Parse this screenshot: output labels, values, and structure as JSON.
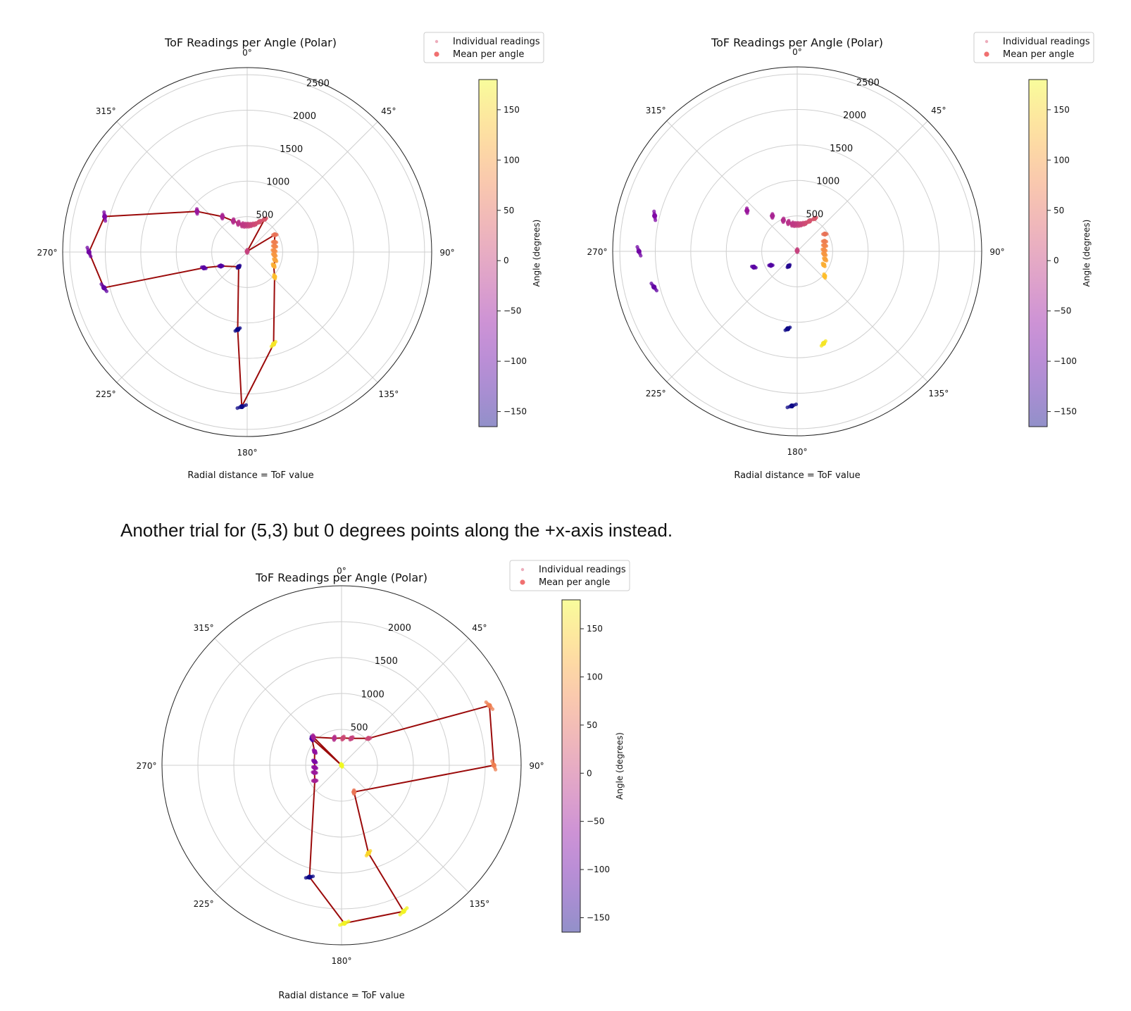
{
  "caption": "Another trial for (5,3) but 0 degrees points along the +x-axis instead.",
  "chart_data": [
    {
      "type": "scatter",
      "subtype": "polar",
      "title": "ToF Readings per Angle (Polar)",
      "xlabel": "Radial distance = ToF value",
      "zero_direction": "north",
      "direction": "clockwise",
      "rlim": [
        0,
        2600
      ],
      "r_ticks": [
        500,
        1000,
        1500,
        2000,
        2500
      ],
      "theta_ticks": [
        "0°",
        "45°",
        "90°",
        "135°",
        "180°",
        "225°",
        "270°",
        "315°"
      ],
      "grid": true,
      "legend": {
        "position": "top-right",
        "entries": [
          "Individual readings",
          "Mean per angle"
        ]
      },
      "colorbar": {
        "label": "Angle (degrees)",
        "range": [
          -165,
          180
        ],
        "ticks": [
          150,
          100,
          50,
          0,
          -50,
          -100,
          -150
        ]
      },
      "show_connecting_line": true,
      "series": [
        {
          "name": "Mean per angle",
          "points": [
            {
              "theta": 0,
              "r": 10
            },
            {
              "theta": 28,
              "r": 525
            },
            {
              "theta": 22,
              "r": 460
            },
            {
              "theta": 16,
              "r": 410
            },
            {
              "theta": 10,
              "r": 390
            },
            {
              "theta": 5,
              "r": 380
            },
            {
              "theta": 0,
              "r": 380
            },
            {
              "theta": -5,
              "r": 380
            },
            {
              "theta": -10,
              "r": 390
            },
            {
              "theta": -17,
              "r": 425
            },
            {
              "theta": -24,
              "r": 480
            },
            {
              "theta": -35,
              "r": 610
            },
            {
              "theta": -51,
              "r": 910
            },
            {
              "theta": -76,
              "r": 2070
            },
            {
              "theta": -90,
              "r": 2230
            },
            {
              "theta": -104,
              "r": 2080
            },
            {
              "theta": -110,
              "r": 650
            },
            {
              "theta": -118,
              "r": 420
            },
            {
              "theta": -150,
              "r": 240
            },
            {
              "theta": -173,
              "r": 1100
            },
            {
              "theta": -178,
              "r": 2180
            },
            {
              "theta": 164,
              "r": 1350
            },
            {
              "theta": 132,
              "r": 520
            },
            {
              "theta": 117,
              "r": 420
            },
            {
              "theta": 106,
              "r": 410
            },
            {
              "theta": 96,
              "r": 385
            },
            {
              "theta": 87,
              "r": 380
            },
            {
              "theta": 78,
              "r": 395
            },
            {
              "theta": 70,
              "r": 410
            },
            {
              "theta": 58,
              "r": 460
            }
          ]
        }
      ]
    },
    {
      "type": "scatter",
      "subtype": "polar",
      "title": "ToF Readings per Angle (Polar)",
      "xlabel": "Radial distance = ToF value",
      "zero_direction": "north",
      "direction": "clockwise",
      "rlim": [
        0,
        2600
      ],
      "r_ticks": [
        500,
        1000,
        1500,
        2000,
        2500
      ],
      "theta_ticks": [
        "0°",
        "45°",
        "90°",
        "135°",
        "180°",
        "225°",
        "270°",
        "315°"
      ],
      "grid": true,
      "legend": {
        "position": "top-right",
        "entries": [
          "Individual readings",
          "Mean per angle"
        ]
      },
      "colorbar": {
        "label": "Angle (degrees)",
        "range": [
          -165,
          180
        ],
        "ticks": [
          150,
          100,
          50,
          0,
          -50,
          -100,
          -150
        ]
      },
      "show_connecting_line": false,
      "series": [
        {
          "name": "Mean per angle",
          "points": [
            {
              "theta": 0,
              "r": 10
            },
            {
              "theta": 28,
              "r": 525
            },
            {
              "theta": 22,
              "r": 460
            },
            {
              "theta": 16,
              "r": 410
            },
            {
              "theta": 10,
              "r": 390
            },
            {
              "theta": 5,
              "r": 380
            },
            {
              "theta": 0,
              "r": 380
            },
            {
              "theta": -5,
              "r": 380
            },
            {
              "theta": -10,
              "r": 390
            },
            {
              "theta": -17,
              "r": 425
            },
            {
              "theta": -24,
              "r": 480
            },
            {
              "theta": -35,
              "r": 610
            },
            {
              "theta": -51,
              "r": 910
            },
            {
              "theta": -76,
              "r": 2070
            },
            {
              "theta": -90,
              "r": 2230
            },
            {
              "theta": -104,
              "r": 2080
            },
            {
              "theta": -110,
              "r": 650
            },
            {
              "theta": -118,
              "r": 420
            },
            {
              "theta": -150,
              "r": 240
            },
            {
              "theta": -173,
              "r": 1100
            },
            {
              "theta": -178,
              "r": 2180
            },
            {
              "theta": 164,
              "r": 1350
            },
            {
              "theta": 132,
              "r": 520
            },
            {
              "theta": 117,
              "r": 420
            },
            {
              "theta": 106,
              "r": 410
            },
            {
              "theta": 96,
              "r": 385
            },
            {
              "theta": 87,
              "r": 380
            },
            {
              "theta": 78,
              "r": 395
            },
            {
              "theta": 70,
              "r": 410
            },
            {
              "theta": 58,
              "r": 460
            }
          ]
        }
      ]
    },
    {
      "type": "scatter",
      "subtype": "polar",
      "title": "ToF Readings per Angle (Polar)",
      "xlabel": "Radial distance = ToF value",
      "zero_direction": "north",
      "direction": "clockwise",
      "rlim": [
        0,
        2500
      ],
      "r_ticks": [
        500,
        1000,
        1500,
        2000
      ],
      "theta_ticks": [
        "0°",
        "45°",
        "90°",
        "135°",
        "180°",
        "225°",
        "270°",
        "315°"
      ],
      "grid": true,
      "legend": {
        "position": "top-right",
        "entries": [
          "Individual readings",
          "Mean per angle"
        ]
      },
      "colorbar": {
        "label": "Angle (degrees)",
        "range": [
          -165,
          180
        ],
        "ticks": [
          150,
          100,
          50,
          0,
          -50,
          -100,
          -150
        ]
      },
      "show_connecting_line": true,
      "series": [
        {
          "name": "Mean per angle",
          "points": [
            {
              "theta": -20,
              "r": 0,
              "c": 180
            },
            {
              "theta": -48,
              "r": 555,
              "c": -120
            },
            {
              "theta": -63,
              "r": 420,
              "c": -60
            },
            {
              "theta": -82,
              "r": 380,
              "c": -80
            },
            {
              "theta": -95,
              "r": 375,
              "c": -60
            },
            {
              "theta": -105,
              "r": 390,
              "c": -50
            },
            {
              "theta": -120,
              "r": 430,
              "c": -40
            },
            {
              "theta": -164,
              "r": 1620,
              "c": -165
            },
            {
              "theta": 179,
              "r": 2200,
              "c": 175
            },
            {
              "theta": 157,
              "r": 2210,
              "c": 175
            },
            {
              "theta": 163,
              "r": 1280,
              "c": 150
            },
            {
              "theta": 155,
              "r": 410,
              "c": 60
            },
            {
              "theta": 90,
              "r": 2120,
              "c": 70
            },
            {
              "theta": 68,
              "r": 2220,
              "c": 70
            },
            {
              "theta": 45,
              "r": 530,
              "c": 10
            },
            {
              "theta": 20,
              "r": 400,
              "c": 0
            },
            {
              "theta": 3,
              "r": 380,
              "c": 10
            },
            {
              "theta": -15,
              "r": 390,
              "c": -20
            },
            {
              "theta": -45,
              "r": 555,
              "c": -40
            }
          ]
        }
      ]
    }
  ]
}
